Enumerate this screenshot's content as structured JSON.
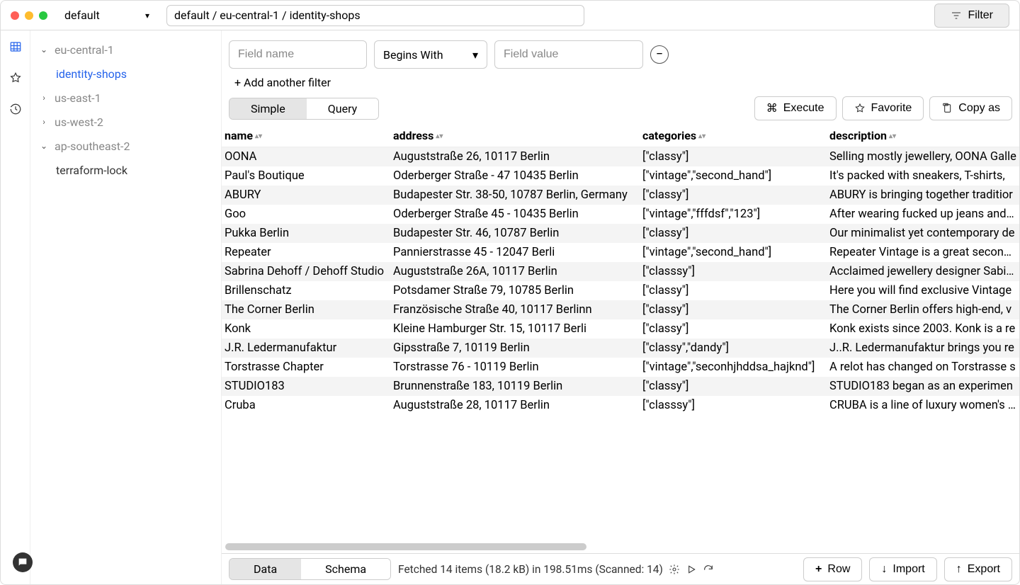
{
  "titlebar": {
    "profile": "default",
    "breadcrumb": "default / eu-central-1 / identity-shops",
    "filter_btn": "Filter"
  },
  "sidebar": {
    "items": [
      {
        "label": "eu-central-1",
        "expanded": true,
        "level": 0
      },
      {
        "label": "identity-shops",
        "level": 1,
        "active": true
      },
      {
        "label": "us-east-1",
        "expanded": false,
        "level": 0
      },
      {
        "label": "us-west-2",
        "expanded": false,
        "level": 0
      },
      {
        "label": "ap-southeast-2",
        "expanded": true,
        "level": 0
      },
      {
        "label": "terraform-lock",
        "level": 1
      }
    ]
  },
  "filter": {
    "name_placeholder": "Field name",
    "operator": "Begins With",
    "value_placeholder": "Field value",
    "add": "+ Add another filter"
  },
  "seg_view": {
    "simple": "Simple",
    "query": "Query"
  },
  "actions": {
    "execute": "Execute",
    "favorite": "Favorite",
    "copy": "Copy as"
  },
  "columns": [
    "name",
    "address",
    "categories",
    "description"
  ],
  "rows": [
    {
      "name": "OONA",
      "address": "Auguststraße 26, 10117 Berlin",
      "categories": "[\"classy\"]",
      "description": "Selling mostly jewellery, OONA Galle"
    },
    {
      "name": "Paul's Boutique",
      "address": "Oderberger Straße - 47 10435 Berlin",
      "categories": "[\"vintage\",\"second_hand\"]",
      "description": "It's packed with sneakers, T-shirts, "
    },
    {
      "name": "ABURY",
      "address": "Budapester Str. 38-50, 10787 Berlin, Germany",
      "categories": "[\"classy\"]",
      "description": "ABURY is bringing together traditior"
    },
    {
      "name": "Goo",
      "address": "Oderberger Straße 45 - 10435 Berlin",
      "categories": "[\"vintage\",\"fffdsf\",\"123\"]",
      "description": "After wearing fucked up jeans and C"
    },
    {
      "name": "Pukka Berlin",
      "address": "Budapester Str. 46, 10787 Berlin",
      "categories": "[\"classy\"]",
      "description": "Our minimalist yet contemporary de"
    },
    {
      "name": "Repeater",
      "address": "Pannierstrasse 45 - 12047 Berli",
      "categories": "[\"vintage\",\"second_hand\"]",
      "description": "Repeater Vintage is a great secondh"
    },
    {
      "name": "Sabrina Dehoff / Dehoff Studio",
      "address": "Auguststraße 26A, 10117 Berlin",
      "categories": "[\"classsy\"]",
      "description": "Acclaimed jewellery designer Sabina"
    },
    {
      "name": "Brillenschatz",
      "address": "Potsdamer Straße 79, 10785 Berlin",
      "categories": "[\"classy\"]",
      "description": "Here you will find exclusive Vintage "
    },
    {
      "name": "The Corner Berlin",
      "address": "Französische Straße 40, 10117 Berlinn",
      "categories": "[\"classy\"]",
      "description": "The Corner Berlin offers high-end, v"
    },
    {
      "name": "Konk",
      "address": "Kleine Hamburger Str. 15, 10117 Berli",
      "categories": "[\"classy\"]",
      "description": "Konk exists since 2003. Konk is a re"
    },
    {
      "name": "J.R. Ledermanufaktur",
      "address": "Gipsstraße 7, 10119 Berlin",
      "categories": "[\"classy\",\"dandy\"]",
      "description": "J..R. Ledermanufaktur brings you re"
    },
    {
      "name": "Torstrasse Chapter",
      "address": "Torstrasse 76 - 10119 Berlin",
      "categories": "[\"vintage\",\"seconhjhddsa_hajknd\"]",
      "description": "A relot has changed on Torstrasse s"
    },
    {
      "name": "STUDIO183",
      "address": "Brunnenstraße 183, 10119 Berlin",
      "categories": "[\"classy\"]",
      "description": "STUDIO183 began as an experimen"
    },
    {
      "name": "Cruba",
      "address": "Auguststraße 28, 10117 Berlin",
      "categories": "[\"classsy\"]",
      "description": "CRUBA is a line of luxury women's w"
    }
  ],
  "footer": {
    "data": "Data",
    "schema": "Schema",
    "status": "Fetched 14 items (18.2 kB) in 198.51ms (Scanned: 14)",
    "row": "Row",
    "import": "Import",
    "export": "Export"
  }
}
